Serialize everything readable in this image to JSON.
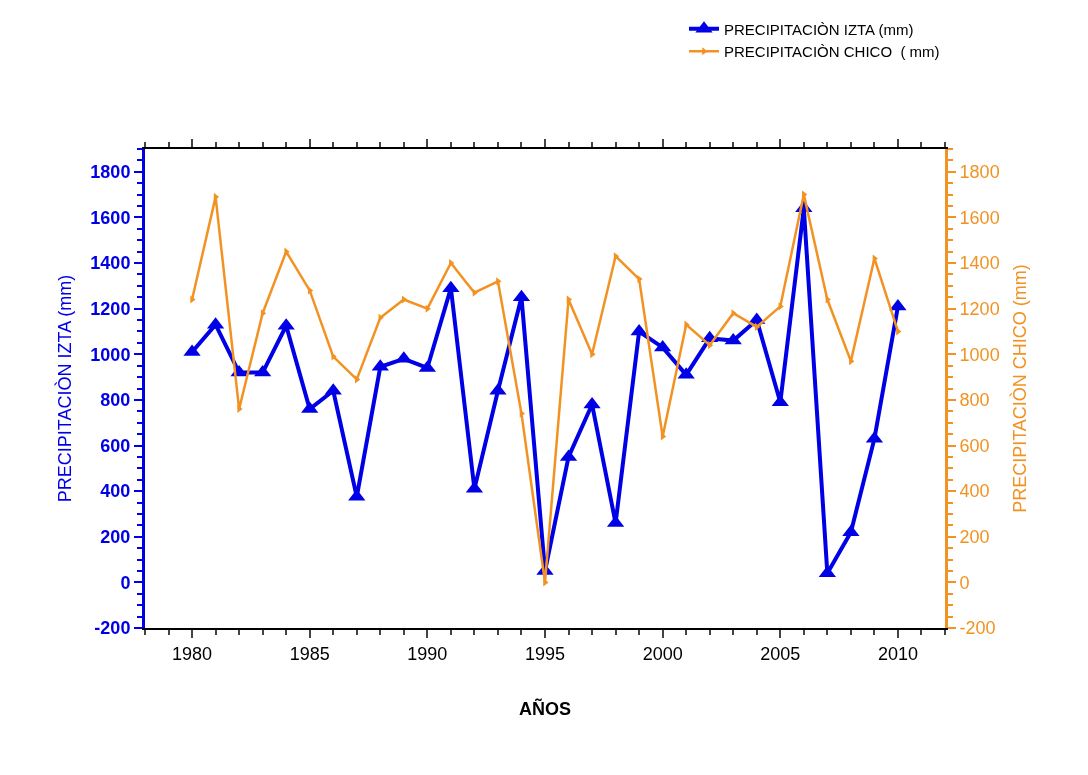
{
  "chart_data": {
    "type": "line",
    "xlabel": "AÑOS",
    "ylabel": "PRECIPITACIÒN IZTA (mm)",
    "y2label": "PRECIPITACIÒN CHICO (mm)",
    "x": [
      1980,
      1981,
      1982,
      1983,
      1984,
      1985,
      1986,
      1987,
      1988,
      1989,
      1990,
      1991,
      1992,
      1993,
      1994,
      1995,
      1996,
      1997,
      1998,
      1999,
      2000,
      2001,
      2002,
      2003,
      2004,
      2005,
      2006,
      2007,
      2008,
      2009,
      2010
    ],
    "series": [
      {
        "name": "PRECIPITACIÒN IZTA (mm)",
        "color": "#0000e6",
        "marker": "triangle",
        "values": [
          1010,
          1130,
          920,
          920,
          1125,
          760,
          840,
          375,
          945,
          980,
          940,
          1290,
          410,
          840,
          1250,
          50,
          550,
          780,
          260,
          1100,
          1030,
          910,
          1070,
          1060,
          1150,
          790,
          1640,
          40,
          220,
          630,
          1210
        ]
      },
      {
        "name": "PRECIPITACIÒN CHICO  ( mm)",
        "color": "#f29222",
        "marker": "triangle-right",
        "axis": "y2",
        "values": [
          1240,
          1690,
          760,
          1180,
          1450,
          1280,
          990,
          890,
          1160,
          1240,
          1200,
          1400,
          1270,
          1320,
          740,
          0,
          1240,
          1000,
          1430,
          1330,
          640,
          1130,
          1040,
          1180,
          1120,
          1210,
          1700,
          1240,
          970,
          1420,
          1100
        ]
      }
    ],
    "xlim": [
      1978,
      2012
    ],
    "xticks": [
      1980,
      1985,
      1990,
      1995,
      2000,
      2005,
      2010
    ],
    "ylim": [
      -200,
      1900
    ],
    "yticks": [
      -200,
      0,
      200,
      400,
      600,
      800,
      1000,
      1200,
      1400,
      1600,
      1800
    ],
    "y2lim": [
      -200,
      1900
    ],
    "y2ticks": [
      -200,
      0,
      200,
      400,
      600,
      800,
      1000,
      1200,
      1400,
      1600,
      1800
    ],
    "legend": "top right",
    "line_style": "solid"
  }
}
